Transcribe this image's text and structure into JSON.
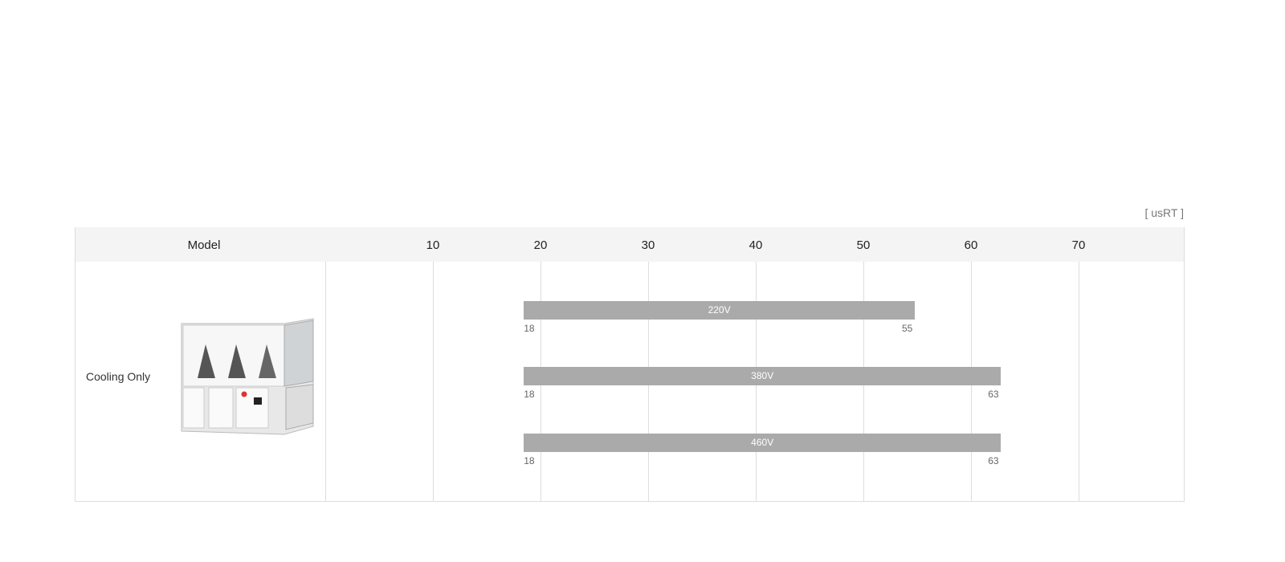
{
  "unit_label": "[ usRT ]",
  "header": {
    "model_label": "Model"
  },
  "row": {
    "label": "Cooling Only",
    "image": "air-cooled-chiller-unit"
  },
  "chart_data": {
    "type": "bar",
    "orientation": "horizontal-range",
    "x_ticks": [
      "10",
      "20",
      "30",
      "40",
      "50",
      "60",
      "70"
    ],
    "x_tick_values": [
      10,
      20,
      30,
      40,
      50,
      60,
      70
    ],
    "xlim": [
      10,
      80
    ],
    "grid": true,
    "bar_color": "#aaaaaa",
    "series": [
      {
        "name": "220V",
        "min": 18,
        "max": 55,
        "min_label": "18",
        "max_label": "55"
      },
      {
        "name": "380V",
        "min": 18,
        "max": 63,
        "min_label": "18",
        "max_label": "63"
      },
      {
        "name": "460V",
        "min": 18,
        "max": 63,
        "min_label": "18",
        "max_label": "63"
      }
    ]
  }
}
